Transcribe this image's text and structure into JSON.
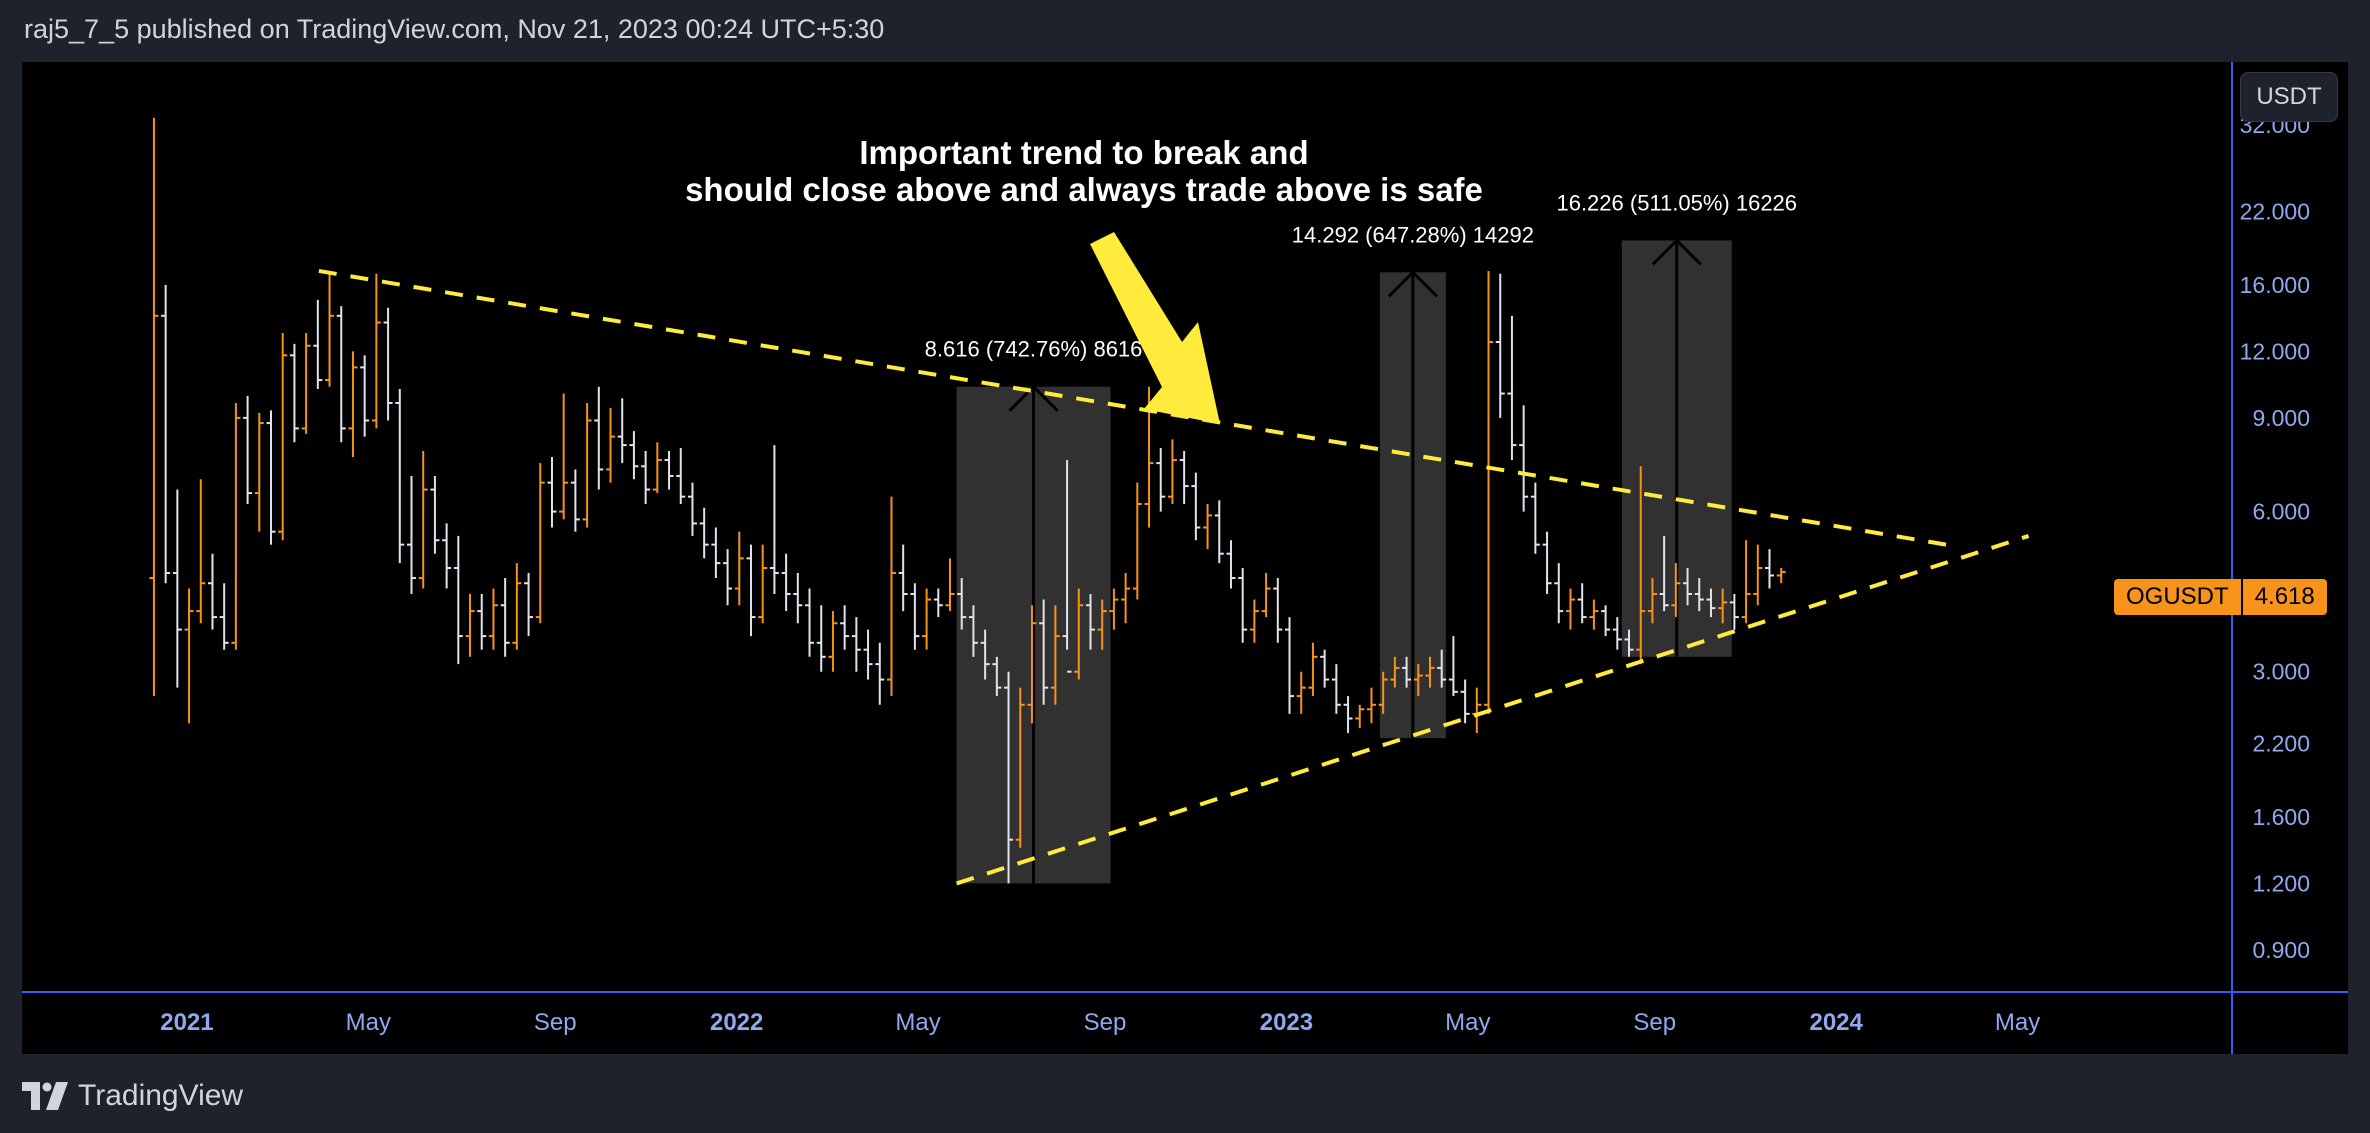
{
  "header": {
    "published_text": "raj5_7_5 published on TradingView.com, Nov 21, 2023 00:24 UTC+5:30"
  },
  "footer": {
    "brand": "TradingView"
  },
  "currency_button": {
    "label": "USDT"
  },
  "price_tag": {
    "symbol": "OGUSDT",
    "value": "4.618"
  },
  "colors": {
    "background": "#000000",
    "up_bar": "#f7931a",
    "down_bar": "#e0e3eb",
    "trendline": "#ffeb3b",
    "axis_text": "#8fa8ee",
    "separator": "#2962ff"
  },
  "annotation": {
    "line1": "Important trend to break and",
    "line2": "should close above and always trade above is safe"
  },
  "measurements": [
    {
      "label": "8.616 (742.76%) 8616",
      "from": 1.2,
      "to": 10.3,
      "start": 2022.4,
      "end": 2022.68
    },
    {
      "label": "14.292 (647.28%) 14292",
      "from": 2.25,
      "to": 16.9,
      "start": 2023.17,
      "end": 2023.29
    },
    {
      "label": "16.226 (511.05%) 16226",
      "from": 3.2,
      "to": 19.4,
      "start": 2023.61,
      "end": 2023.81
    }
  ],
  "chart_data": {
    "type": "ohlc",
    "symbol": "OGUSDT",
    "scale": "log",
    "ylim": [
      0.75,
      42
    ],
    "xlim": [
      2020.7,
      2024.72
    ],
    "y_ticks": [
      "32.000",
      "22.000",
      "16.000",
      "12.000",
      "9.000",
      "6.000",
      "3.000",
      "2.200",
      "1.600",
      "1.200",
      "0.900"
    ],
    "x_ticks": [
      {
        "label": "2021",
        "t": 2021.0,
        "bold": true
      },
      {
        "label": "May",
        "t": 2021.33,
        "bold": false
      },
      {
        "label": "Sep",
        "t": 2021.67,
        "bold": false
      },
      {
        "label": "2022",
        "t": 2022.0,
        "bold": true
      },
      {
        "label": "May",
        "t": 2022.33,
        "bold": false
      },
      {
        "label": "Sep",
        "t": 2022.67,
        "bold": false
      },
      {
        "label": "2023",
        "t": 2023.0,
        "bold": true
      },
      {
        "label": "May",
        "t": 2023.33,
        "bold": false
      },
      {
        "label": "Sep",
        "t": 2023.67,
        "bold": false
      },
      {
        "label": "2024",
        "t": 2024.0,
        "bold": true
      },
      {
        "label": "May",
        "t": 2024.33,
        "bold": false
      }
    ],
    "last_price": 4.618,
    "trendlines": [
      {
        "name": "descending resistance",
        "t1": 2021.24,
        "p1": 17.0,
        "t2": 2024.2,
        "p2": 5.2
      },
      {
        "name": "ascending support",
        "t1": 2022.4,
        "p1": 1.2,
        "t2": 2024.35,
        "p2": 5.4
      }
    ],
    "bars": [
      [
        4.5,
        33,
        2.7,
        14
      ],
      [
        14,
        16,
        4.4,
        4.6
      ],
      [
        4.6,
        6.6,
        2.8,
        3.6
      ],
      [
        3.6,
        4.3,
        2.4,
        3.9
      ],
      [
        3.9,
        6.9,
        3.7,
        4.4
      ],
      [
        4.4,
        5.0,
        3.6,
        3.8
      ],
      [
        3.8,
        4.4,
        3.3,
        3.4
      ],
      [
        3.4,
        9.6,
        3.3,
        9.0
      ],
      [
        9.0,
        9.9,
        6.2,
        6.5
      ],
      [
        6.5,
        9.2,
        5.5,
        8.8
      ],
      [
        8.8,
        9.3,
        5.2,
        5.5
      ],
      [
        5.5,
        13.0,
        5.3,
        11.8
      ],
      [
        11.8,
        12.4,
        8.1,
        8.6
      ],
      [
        8.6,
        13.0,
        8.4,
        12.3
      ],
      [
        12.3,
        15.0,
        10.2,
        10.6
      ],
      [
        10.6,
        17.0,
        10.3,
        14.0
      ],
      [
        14.0,
        14.6,
        8.1,
        8.6
      ],
      [
        8.6,
        12.0,
        7.6,
        11.2
      ],
      [
        11.2,
        11.8,
        8.3,
        8.9
      ],
      [
        8.9,
        16.8,
        8.6,
        13.6
      ],
      [
        13.6,
        14.5,
        8.9,
        9.6
      ],
      [
        9.6,
        10.2,
        4.8,
        5.2
      ],
      [
        5.2,
        7.0,
        4.2,
        4.5
      ],
      [
        4.5,
        7.8,
        4.3,
        6.6
      ],
      [
        6.6,
        7.0,
        5.0,
        5.3
      ],
      [
        5.3,
        5.7,
        4.3,
        4.7
      ],
      [
        4.7,
        5.4,
        3.1,
        3.5
      ],
      [
        3.5,
        4.2,
        3.2,
        3.9
      ],
      [
        3.9,
        4.2,
        3.3,
        3.5
      ],
      [
        3.5,
        4.3,
        3.3,
        4.0
      ],
      [
        4.0,
        4.5,
        3.2,
        3.4
      ],
      [
        3.4,
        4.8,
        3.3,
        4.4
      ],
      [
        4.4,
        4.6,
        3.5,
        3.8
      ],
      [
        3.8,
        7.4,
        3.7,
        6.8
      ],
      [
        6.8,
        7.6,
        5.6,
        6.0
      ],
      [
        6.0,
        10.0,
        5.8,
        6.8
      ],
      [
        6.8,
        7.2,
        5.5,
        5.8
      ],
      [
        5.8,
        9.6,
        5.6,
        8.9
      ],
      [
        8.9,
        10.3,
        6.6,
        7.2
      ],
      [
        7.2,
        9.4,
        6.8,
        8.3
      ],
      [
        8.3,
        9.8,
        7.4,
        8.0
      ],
      [
        8.0,
        8.5,
        6.9,
        7.3
      ],
      [
        7.3,
        7.8,
        6.2,
        6.6
      ],
      [
        6.6,
        8.1,
        6.5,
        7.5
      ],
      [
        7.5,
        7.8,
        6.6,
        7.0
      ],
      [
        7.0,
        7.9,
        6.2,
        6.4
      ],
      [
        6.4,
        6.8,
        5.4,
        5.7
      ],
      [
        5.7,
        6.1,
        4.9,
        5.2
      ],
      [
        5.2,
        5.6,
        4.5,
        4.8
      ],
      [
        4.8,
        5.1,
        4.0,
        4.3
      ],
      [
        4.3,
        5.5,
        4.0,
        4.9
      ],
      [
        4.9,
        5.2,
        3.5,
        3.8
      ],
      [
        3.8,
        5.2,
        3.7,
        4.7
      ],
      [
        4.7,
        8.0,
        4.2,
        4.6
      ],
      [
        4.6,
        5.0,
        3.9,
        4.2
      ],
      [
        4.2,
        4.6,
        3.7,
        4.0
      ],
      [
        4.0,
        4.3,
        3.2,
        3.4
      ],
      [
        3.4,
        4.0,
        3.0,
        3.2
      ],
      [
        3.2,
        3.9,
        3.0,
        3.7
      ],
      [
        3.7,
        4.0,
        3.3,
        3.5
      ],
      [
        3.5,
        3.8,
        3.0,
        3.3
      ],
      [
        3.3,
        3.6,
        2.9,
        3.1
      ],
      [
        3.1,
        3.4,
        2.6,
        2.9
      ],
      [
        2.9,
        6.4,
        2.7,
        4.6
      ],
      [
        4.6,
        5.2,
        3.9,
        4.2
      ],
      [
        4.2,
        4.4,
        3.3,
        3.5
      ],
      [
        3.5,
        4.3,
        3.3,
        4.1
      ],
      [
        4.1,
        4.3,
        3.8,
        4.0
      ],
      [
        4.0,
        4.9,
        3.9,
        4.2
      ],
      [
        4.2,
        4.5,
        3.6,
        3.8
      ],
      [
        3.8,
        4.0,
        3.2,
        3.4
      ],
      [
        3.4,
        3.6,
        2.9,
        3.1
      ],
      [
        3.1,
        3.2,
        2.7,
        2.8
      ],
      [
        2.8,
        3.0,
        1.2,
        1.45
      ],
      [
        1.45,
        2.8,
        1.4,
        2.6
      ],
      [
        2.6,
        4.0,
        2.4,
        3.7
      ],
      [
        3.7,
        4.1,
        2.6,
        2.8
      ],
      [
        2.8,
        4.0,
        2.6,
        3.5
      ],
      [
        3.5,
        7.5,
        3.3,
        3.0
      ],
      [
        3.0,
        4.3,
        2.9,
        4.0
      ],
      [
        4.0,
        4.2,
        3.3,
        3.6
      ],
      [
        3.6,
        4.1,
        3.3,
        3.9
      ],
      [
        3.9,
        4.3,
        3.6,
        4.1
      ],
      [
        4.1,
        4.6,
        3.7,
        4.3
      ],
      [
        4.3,
        6.8,
        4.1,
        6.2
      ],
      [
        6.2,
        10.3,
        5.6,
        7.4
      ],
      [
        7.4,
        7.9,
        6.0,
        6.4
      ],
      [
        6.4,
        8.2,
        6.2,
        7.5
      ],
      [
        7.5,
        7.8,
        6.2,
        6.7
      ],
      [
        6.7,
        7.1,
        5.3,
        5.6
      ],
      [
        5.6,
        6.2,
        5.1,
        5.9
      ],
      [
        5.9,
        6.3,
        4.8,
        5.0
      ],
      [
        5.0,
        5.3,
        4.3,
        4.5
      ],
      [
        4.5,
        4.7,
        3.4,
        3.6
      ],
      [
        3.6,
        4.1,
        3.4,
        3.9
      ],
      [
        3.9,
        4.6,
        3.8,
        4.3
      ],
      [
        4.3,
        4.5,
        3.4,
        3.6
      ],
      [
        3.6,
        3.8,
        2.5,
        2.7
      ],
      [
        2.7,
        3.0,
        2.5,
        2.8
      ],
      [
        2.8,
        3.4,
        2.7,
        3.2
      ],
      [
        3.2,
        3.3,
        2.8,
        2.9
      ],
      [
        2.9,
        3.1,
        2.5,
        2.6
      ],
      [
        2.6,
        2.7,
        2.3,
        2.45
      ],
      [
        2.45,
        2.6,
        2.35,
        2.55
      ],
      [
        2.55,
        2.8,
        2.4,
        2.6
      ],
      [
        2.6,
        3.0,
        2.5,
        2.9
      ],
      [
        2.9,
        3.2,
        2.8,
        3.05
      ],
      [
        3.05,
        3.2,
        2.8,
        2.9
      ],
      [
        2.9,
        3.1,
        2.7,
        2.95
      ],
      [
        2.95,
        3.2,
        2.8,
        3.05
      ],
      [
        3.05,
        3.3,
        2.8,
        2.9
      ],
      [
        2.9,
        3.5,
        2.7,
        2.75
      ],
      [
        2.75,
        2.9,
        2.4,
        2.5
      ],
      [
        2.5,
        2.8,
        2.3,
        2.6
      ],
      [
        2.6,
        17.0,
        2.5,
        12.5
      ],
      [
        12.5,
        16.8,
        9.0,
        10.0
      ],
      [
        10.0,
        14.0,
        7.5,
        8.0
      ],
      [
        8.0,
        9.5,
        6.0,
        6.4
      ],
      [
        6.4,
        6.8,
        5.0,
        5.2
      ],
      [
        5.2,
        5.5,
        4.2,
        4.4
      ],
      [
        4.4,
        4.8,
        3.7,
        3.9
      ],
      [
        3.9,
        4.3,
        3.6,
        4.1
      ],
      [
        4.1,
        4.4,
        3.7,
        3.8
      ],
      [
        3.8,
        4.1,
        3.6,
        3.9
      ],
      [
        3.9,
        4.0,
        3.5,
        3.6
      ],
      [
        3.6,
        3.8,
        3.3,
        3.45
      ],
      [
        3.45,
        3.6,
        3.2,
        3.3
      ],
      [
        3.3,
        7.3,
        3.1,
        3.9
      ],
      [
        3.9,
        4.5,
        3.7,
        4.2
      ],
      [
        4.2,
        5.4,
        3.9,
        4.0
      ],
      [
        4.0,
        4.8,
        3.8,
        4.4
      ],
      [
        4.4,
        4.7,
        4.0,
        4.2
      ],
      [
        4.2,
        4.5,
        3.9,
        4.1
      ],
      [
        4.1,
        4.3,
        3.8,
        3.95
      ],
      [
        3.95,
        4.3,
        3.7,
        4.05
      ],
      [
        4.05,
        4.2,
        3.6,
        3.8
      ],
      [
        3.8,
        5.3,
        3.7,
        4.2
      ],
      [
        4.2,
        5.2,
        4.0,
        4.7
      ],
      [
        4.7,
        5.1,
        4.3,
        4.55
      ],
      [
        4.55,
        4.7,
        4.4,
        4.618
      ]
    ]
  }
}
